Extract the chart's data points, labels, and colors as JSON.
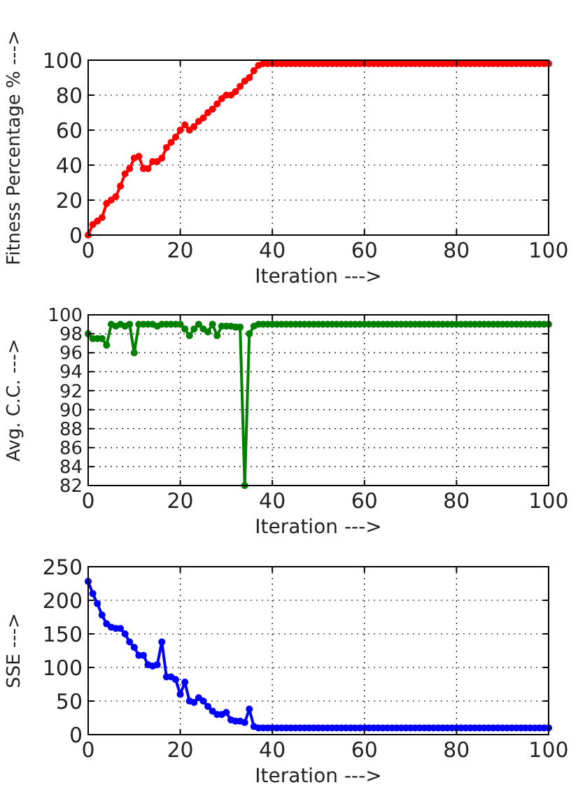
{
  "chart_data": [
    {
      "type": "line",
      "xlabel": "Iteration --->",
      "ylabel": "Fitness Percentage % --->",
      "color": "#ff0000",
      "marker": "circle",
      "grid": true,
      "xlim": [
        0,
        100
      ],
      "xticks": [
        0,
        20,
        40,
        60,
        80,
        100
      ],
      "ylim": [
        0,
        100
      ],
      "yticks": [
        0,
        20,
        40,
        60,
        80,
        100
      ],
      "x": [
        0,
        1,
        2,
        3,
        4,
        5,
        6,
        7,
        8,
        9,
        10,
        11,
        12,
        13,
        14,
        15,
        16,
        17,
        18,
        19,
        20,
        21,
        22,
        23,
        24,
        25,
        26,
        27,
        28,
        29,
        30,
        31,
        32,
        33,
        34,
        35,
        36,
        37,
        38,
        39,
        40,
        41,
        42,
        43,
        44,
        45,
        46,
        47,
        48,
        49,
        50,
        51,
        52,
        53,
        54,
        55,
        56,
        57,
        58,
        59,
        60,
        61,
        62,
        63,
        64,
        65,
        66,
        67,
        68,
        69,
        70,
        71,
        72,
        73,
        74,
        75,
        76,
        77,
        78,
        79,
        80,
        81,
        82,
        83,
        84,
        85,
        86,
        87,
        88,
        89,
        90,
        91,
        92,
        93,
        94,
        95,
        96,
        97,
        98,
        99,
        100
      ],
      "values": [
        0,
        6,
        8,
        10,
        18,
        20,
        22,
        28,
        35,
        38,
        44,
        45,
        38,
        38,
        42,
        42,
        44,
        50,
        53,
        56,
        60,
        63,
        60,
        62,
        65,
        67,
        70,
        72,
        75,
        78,
        80,
        80,
        82,
        85,
        88,
        90,
        94,
        97,
        98,
        98,
        98,
        98,
        98,
        98,
        98,
        98,
        98,
        98,
        98,
        98,
        98,
        98,
        98,
        98,
        98,
        98,
        98,
        98,
        98,
        98,
        98,
        98,
        98,
        98,
        98,
        98,
        98,
        98,
        98,
        98,
        98,
        98,
        98,
        98,
        98,
        98,
        98,
        98,
        98,
        98,
        98,
        98,
        98,
        98,
        98,
        98,
        98,
        98,
        98,
        98,
        98,
        98,
        98,
        98,
        98,
        98,
        98,
        98,
        98,
        98,
        98
      ]
    },
    {
      "type": "line",
      "xlabel": "Iteration --->",
      "ylabel": "Avg. C.C. --->",
      "color": "#008000",
      "marker": "circle",
      "grid": true,
      "xlim": [
        0,
        100
      ],
      "xticks": [
        0,
        20,
        40,
        60,
        80,
        100
      ],
      "ylim": [
        82,
        100
      ],
      "yticks": [
        82,
        84,
        86,
        88,
        90,
        92,
        94,
        96,
        98,
        100
      ],
      "x": [
        0,
        1,
        2,
        3,
        4,
        5,
        6,
        7,
        8,
        9,
        10,
        11,
        12,
        13,
        14,
        15,
        16,
        17,
        18,
        19,
        20,
        21,
        22,
        23,
        24,
        25,
        26,
        27,
        28,
        29,
        30,
        31,
        32,
        33,
        34,
        35,
        36,
        37,
        38,
        39,
        40,
        41,
        42,
        43,
        44,
        45,
        46,
        47,
        48,
        49,
        50,
        51,
        52,
        53,
        54,
        55,
        56,
        57,
        58,
        59,
        60,
        61,
        62,
        63,
        64,
        65,
        66,
        67,
        68,
        69,
        70,
        71,
        72,
        73,
        74,
        75,
        76,
        77,
        78,
        79,
        80,
        81,
        82,
        83,
        84,
        85,
        86,
        87,
        88,
        89,
        90,
        91,
        92,
        93,
        94,
        95,
        96,
        97,
        98,
        99,
        100
      ],
      "values": [
        98,
        97.5,
        97.5,
        97.5,
        96.8,
        99,
        98.8,
        99,
        98.8,
        99,
        96,
        99,
        99,
        99,
        99,
        98.8,
        99,
        99,
        99,
        99,
        99,
        98.5,
        97.8,
        98.5,
        99,
        98.5,
        98.2,
        99,
        97.8,
        98.8,
        98.8,
        98.8,
        98.7,
        98.7,
        82,
        98,
        98.8,
        99,
        99,
        99,
        99,
        99,
        99,
        99,
        99,
        99,
        99,
        99,
        99,
        99,
        99,
        99,
        99,
        99,
        99,
        99,
        99,
        99,
        99,
        99,
        99,
        99,
        99,
        99,
        99,
        99,
        99,
        99,
        99,
        99,
        99,
        99,
        99,
        99,
        99,
        99,
        99,
        99,
        99,
        99,
        99,
        99,
        99,
        99,
        99,
        99,
        99,
        99,
        99,
        99,
        99,
        99,
        99,
        99,
        99,
        99,
        99,
        99,
        99,
        99,
        99
      ]
    },
    {
      "type": "line",
      "xlabel": "Iteration --->",
      "ylabel": "SSE --->",
      "color": "#0000ff",
      "marker": "circle",
      "grid": true,
      "xlim": [
        0,
        100
      ],
      "xticks": [
        0,
        20,
        40,
        60,
        80,
        100
      ],
      "ylim": [
        0,
        250
      ],
      "yticks": [
        0,
        50,
        100,
        150,
        200,
        250
      ],
      "x": [
        0,
        1,
        2,
        3,
        4,
        5,
        6,
        7,
        8,
        9,
        10,
        11,
        12,
        13,
        14,
        15,
        16,
        17,
        18,
        19,
        20,
        21,
        22,
        23,
        24,
        25,
        26,
        27,
        28,
        29,
        30,
        31,
        32,
        33,
        34,
        35,
        36,
        37,
        38,
        39,
        40,
        41,
        42,
        43,
        44,
        45,
        46,
        47,
        48,
        49,
        50,
        51,
        52,
        53,
        54,
        55,
        56,
        57,
        58,
        59,
        60,
        61,
        62,
        63,
        64,
        65,
        66,
        67,
        68,
        69,
        70,
        71,
        72,
        73,
        74,
        75,
        76,
        77,
        78,
        79,
        80,
        81,
        82,
        83,
        84,
        85,
        86,
        87,
        88,
        89,
        90,
        91,
        92,
        93,
        94,
        95,
        96,
        97,
        98,
        99,
        100
      ],
      "values": [
        228,
        210,
        195,
        178,
        165,
        160,
        158,
        158,
        150,
        138,
        130,
        118,
        118,
        104,
        102,
        104,
        138,
        86,
        86,
        82,
        60,
        78,
        50,
        48,
        55,
        50,
        42,
        35,
        30,
        30,
        33,
        22,
        20,
        20,
        18,
        38,
        12,
        10,
        10,
        10,
        10,
        10,
        10,
        10,
        10,
        10,
        10,
        10,
        10,
        10,
        10,
        10,
        10,
        10,
        10,
        10,
        10,
        10,
        10,
        10,
        10,
        10,
        10,
        10,
        10,
        10,
        10,
        10,
        10,
        10,
        10,
        10,
        10,
        10,
        10,
        10,
        10,
        10,
        10,
        10,
        10,
        10,
        10,
        10,
        10,
        10,
        10,
        10,
        10,
        10,
        10,
        10,
        10,
        10,
        10,
        10,
        10,
        10,
        10,
        10,
        10
      ]
    }
  ]
}
